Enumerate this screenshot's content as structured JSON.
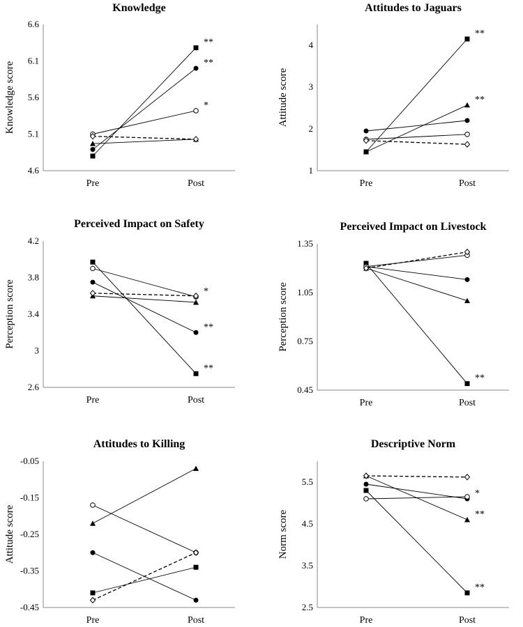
{
  "chart_data": [
    {
      "type": "line",
      "title": "Knowledge",
      "ylabel": "Knowledge score",
      "categories": [
        "Pre",
        "Post"
      ],
      "ylim": [
        4.6,
        6.6
      ],
      "yticks": [
        "4.6",
        "5.1",
        "5.6",
        "6.1",
        "6.6"
      ],
      "series": [
        {
          "name": "square",
          "marker": "square",
          "dashed": false,
          "values": [
            4.8,
            6.28
          ],
          "sig": "**"
        },
        {
          "name": "circle",
          "marker": "circle",
          "dashed": false,
          "values": [
            4.89,
            6.0
          ],
          "sig": "**"
        },
        {
          "name": "open-circle",
          "marker": "open-circle",
          "dashed": false,
          "values": [
            5.1,
            5.42
          ],
          "sig": "*"
        },
        {
          "name": "triangle",
          "marker": "triangle",
          "dashed": false,
          "values": [
            4.97,
            5.03
          ],
          "sig": ""
        },
        {
          "name": "open-diamond",
          "marker": "open-diamond",
          "dashed": true,
          "values": [
            5.07,
            5.03
          ],
          "sig": ""
        }
      ]
    },
    {
      "type": "line",
      "title": "Attitudes to Jaguars",
      "ylabel": "Attitude score",
      "categories": [
        "Pre",
        "Post"
      ],
      "ylim": [
        1,
        4.5
      ],
      "yticks": [
        "1",
        "2",
        "3",
        "4"
      ],
      "series": [
        {
          "name": "square",
          "marker": "square",
          "dashed": false,
          "values": [
            1.45,
            4.15
          ],
          "sig": "**"
        },
        {
          "name": "triangle",
          "marker": "triangle",
          "dashed": false,
          "values": [
            1.45,
            2.57
          ],
          "sig": "**"
        },
        {
          "name": "circle",
          "marker": "circle",
          "dashed": false,
          "values": [
            1.95,
            2.2
          ],
          "sig": ""
        },
        {
          "name": "open-circle",
          "marker": "open-circle",
          "dashed": false,
          "values": [
            1.75,
            1.87
          ],
          "sig": ""
        },
        {
          "name": "open-diamond",
          "marker": "open-diamond",
          "dashed": true,
          "values": [
            1.72,
            1.63
          ],
          "sig": ""
        }
      ]
    },
    {
      "type": "line",
      "title": "Perceived Impact on Safety",
      "ylabel": "Perception score",
      "categories": [
        "Pre",
        "Post"
      ],
      "ylim": [
        2.6,
        4.2
      ],
      "yticks": [
        "2.6",
        "3",
        "3.4",
        "3.8",
        "4.2"
      ],
      "series": [
        {
          "name": "square",
          "marker": "square",
          "dashed": false,
          "values": [
            3.97,
            2.75
          ],
          "sig": "**"
        },
        {
          "name": "circle",
          "marker": "circle",
          "dashed": false,
          "values": [
            3.75,
            3.2
          ],
          "sig": "**"
        },
        {
          "name": "open-circle",
          "marker": "open-circle",
          "dashed": false,
          "values": [
            3.9,
            3.59
          ],
          "sig": "*"
        },
        {
          "name": "triangle",
          "marker": "triangle",
          "dashed": false,
          "values": [
            3.6,
            3.53
          ],
          "sig": ""
        },
        {
          "name": "open-diamond",
          "marker": "open-diamond",
          "dashed": true,
          "values": [
            3.63,
            3.6
          ],
          "sig": ""
        }
      ]
    },
    {
      "type": "line",
      "title": "Perceived Impact on Livestock",
      "ylabel": "Perception score",
      "categories": [
        "Pre",
        "Post"
      ],
      "ylim": [
        0.45,
        1.35
      ],
      "yticks": [
        "0.45",
        "0.75",
        "1.05",
        "1.35"
      ],
      "series": [
        {
          "name": "square",
          "marker": "square",
          "dashed": false,
          "values": [
            1.23,
            0.49
          ],
          "sig": "**"
        },
        {
          "name": "circle",
          "marker": "circle",
          "dashed": false,
          "values": [
            1.21,
            1.13
          ],
          "sig": ""
        },
        {
          "name": "triangle",
          "marker": "triangle",
          "dashed": false,
          "values": [
            1.2,
            1.0
          ],
          "sig": ""
        },
        {
          "name": "open-circle",
          "marker": "open-circle",
          "dashed": false,
          "values": [
            1.21,
            1.28
          ],
          "sig": ""
        },
        {
          "name": "open-diamond",
          "marker": "open-diamond",
          "dashed": true,
          "values": [
            1.2,
            1.3
          ],
          "sig": ""
        }
      ]
    },
    {
      "type": "line",
      "title": "Attitudes to Killing",
      "ylabel": "Attitude score",
      "categories": [
        "Pre",
        "Post"
      ],
      "ylim": [
        -0.45,
        -0.05
      ],
      "yticks": [
        "-0.45",
        "-0.35",
        "-0.25",
        "-0.15",
        "-0.05"
      ],
      "series": [
        {
          "name": "triangle",
          "marker": "triangle",
          "dashed": false,
          "values": [
            -0.22,
            -0.07
          ],
          "sig": ""
        },
        {
          "name": "open-circle",
          "marker": "open-circle",
          "dashed": false,
          "values": [
            -0.17,
            -0.3
          ],
          "sig": ""
        },
        {
          "name": "circle",
          "marker": "circle",
          "dashed": false,
          "values": [
            -0.3,
            -0.43
          ],
          "sig": ""
        },
        {
          "name": "square",
          "marker": "square",
          "dashed": false,
          "values": [
            -0.41,
            -0.34
          ],
          "sig": ""
        },
        {
          "name": "open-diamond",
          "marker": "open-diamond",
          "dashed": true,
          "values": [
            -0.43,
            -0.3
          ],
          "sig": ""
        }
      ]
    },
    {
      "type": "line",
      "title": "Descriptive Norm",
      "ylabel": "Norm score",
      "categories": [
        "Pre",
        "Post"
      ],
      "ylim": [
        2.5,
        6.0
      ],
      "yticks": [
        "2.5",
        "3.5",
        "4.5",
        "5.5"
      ],
      "series": [
        {
          "name": "square",
          "marker": "square",
          "dashed": false,
          "values": [
            5.3,
            2.85
          ],
          "sig": "**"
        },
        {
          "name": "triangle",
          "marker": "triangle",
          "dashed": false,
          "values": [
            5.65,
            4.6
          ],
          "sig": "**"
        },
        {
          "name": "circle",
          "marker": "circle",
          "dashed": false,
          "values": [
            5.45,
            5.1
          ],
          "sig": "*"
        },
        {
          "name": "open-circle",
          "marker": "open-circle",
          "dashed": false,
          "values": [
            5.1,
            5.15
          ],
          "sig": ""
        },
        {
          "name": "open-diamond",
          "marker": "open-diamond",
          "dashed": true,
          "values": [
            5.65,
            5.62
          ],
          "sig": ""
        }
      ]
    }
  ]
}
